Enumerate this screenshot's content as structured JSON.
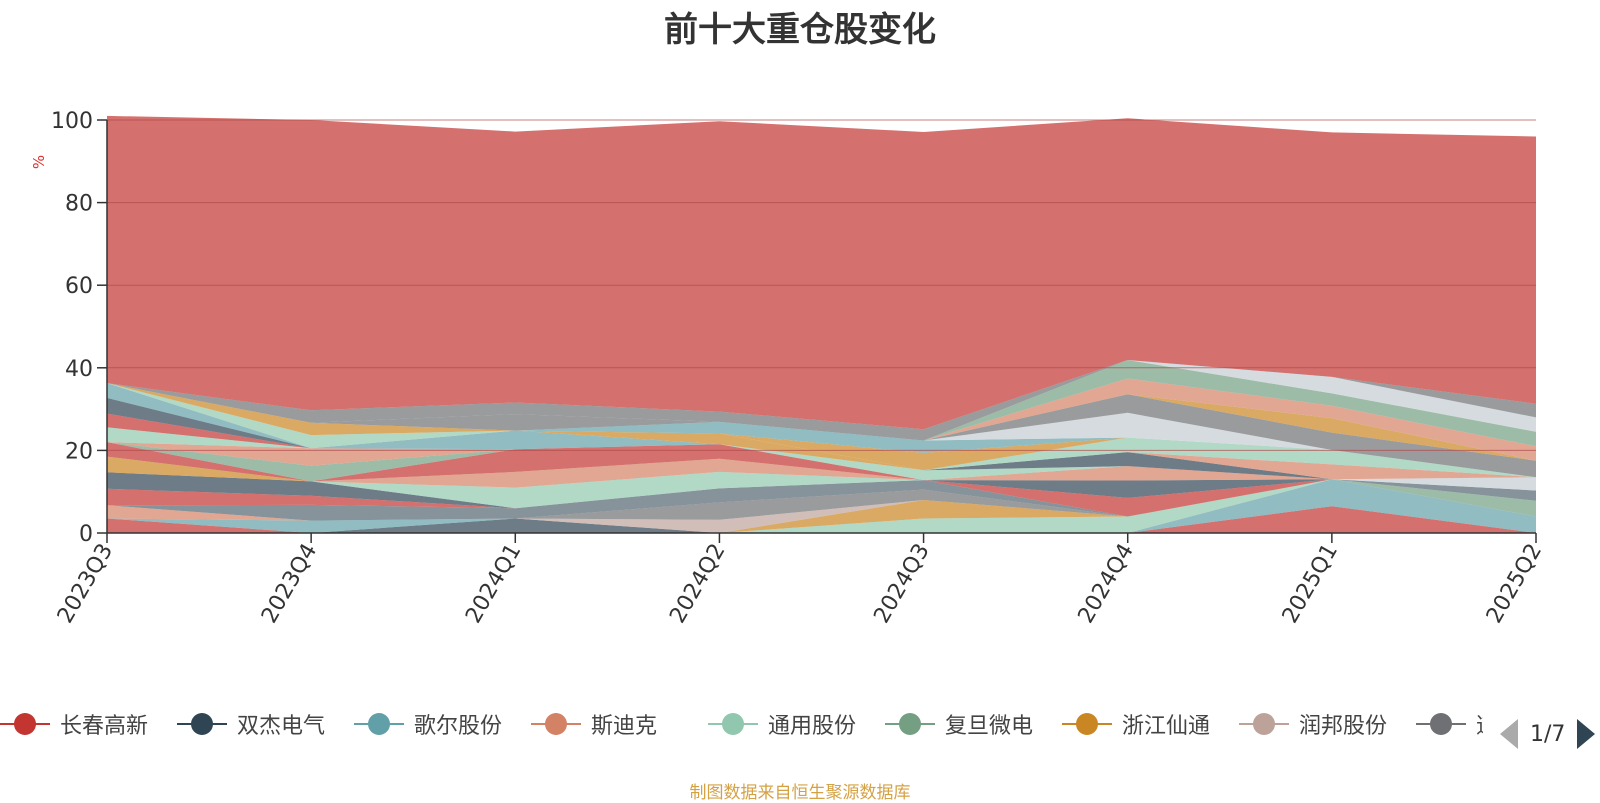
{
  "chart_data": {
    "type": "area",
    "stacked": true,
    "title": "前十大重仓股变化",
    "ylabel": "%",
    "ylim": [
      0,
      100
    ],
    "yticks": [
      "0",
      "20",
      "40",
      "60",
      "80",
      "100"
    ],
    "categories": [
      "2023Q3",
      "2023Q4",
      "2024Q1",
      "2024Q2",
      "2024Q3",
      "2024Q4",
      "2025Q1",
      "2025Q2"
    ],
    "series": [
      {
        "name": "长春高新",
        "color": "#c23531",
        "values": [
          3.5,
          0,
          0,
          0,
          0,
          0,
          6.5,
          0
        ]
      },
      {
        "name": "双杰电气",
        "color": "#2f4554",
        "values": [
          0,
          0,
          3.5,
          0,
          0,
          0,
          0,
          0
        ]
      },
      {
        "name": "歌尔股份",
        "color": "#61a0a8",
        "values": [
          0,
          3.0,
          0,
          0,
          0,
          0,
          6.5,
          4.0
        ]
      },
      {
        "name": "斯迪克",
        "color": "#d48265",
        "values": [
          3.2,
          0,
          0,
          0,
          0,
          0,
          0,
          0
        ]
      },
      {
        "name": "通用股份",
        "color": "#91c7ae",
        "values": [
          0,
          0,
          0,
          0,
          3.5,
          4.0,
          0,
          0
        ]
      },
      {
        "name": "复旦微电",
        "color": "#749f83",
        "values": [
          0,
          0,
          0,
          0,
          0,
          0,
          0,
          3.8
        ]
      },
      {
        "name": "浙江仙通",
        "color": "#ca8622",
        "values": [
          0,
          0,
          0,
          0,
          4.5,
          0,
          0,
          0
        ]
      },
      {
        "name": "润邦股份",
        "color": "#bda29a",
        "values": [
          0,
          0,
          0,
          3.2,
          0,
          0,
          0,
          0
        ]
      },
      {
        "name": "道通科技",
        "color": "#6e7074",
        "values": [
          0,
          0,
          0,
          4.2,
          2.5,
          0,
          0,
          0
        ]
      },
      {
        "name": "",
        "color": "#546570",
        "values": [
          0,
          3.8,
          2.5,
          3.4,
          2.3,
          0,
          0,
          2.5
        ]
      },
      {
        "name": "",
        "color": "#c4ccd3",
        "values": [
          0,
          0,
          0,
          0,
          0,
          0,
          0,
          3.2
        ]
      },
      {
        "name": "",
        "color": "#c23531",
        "values": [
          4.0,
          2.2,
          0,
          0,
          0,
          4.5,
          0,
          0
        ]
      },
      {
        "name": "",
        "color": "#2f4554",
        "values": [
          4.0,
          3.5,
          0,
          0,
          0,
          4.2,
          0,
          0
        ]
      },
      {
        "name": "",
        "color": "#61a0a8",
        "values": [
          0,
          0,
          0,
          0,
          0,
          0,
          0,
          0
        ]
      },
      {
        "name": "",
        "color": "#d48265",
        "values": [
          0,
          0,
          0,
          0,
          0,
          3.5,
          0,
          0
        ]
      },
      {
        "name": "",
        "color": "#ca8622",
        "values": [
          3.8,
          0,
          0,
          0,
          0,
          0,
          0,
          0
        ]
      },
      {
        "name": "",
        "color": "#91c7ae",
        "values": [
          0,
          0,
          5.0,
          4.0,
          0,
          0,
          0,
          0
        ]
      },
      {
        "name": "",
        "color": "#d48265",
        "values": [
          0,
          0,
          3.8,
          3.2,
          0,
          0,
          0,
          0
        ]
      },
      {
        "name": "",
        "color": "#c23531",
        "values": [
          3.5,
          0,
          5.5,
          3.5,
          0,
          0,
          0,
          0
        ]
      },
      {
        "name": "",
        "color": "#749f83",
        "values": [
          0,
          3.8,
          0,
          0,
          0,
          0,
          0,
          0
        ]
      },
      {
        "name": "",
        "color": "#d48265",
        "values": [
          0,
          4.2,
          0,
          0,
          0,
          0,
          0,
          0
        ]
      },
      {
        "name": "",
        "color": "#91c7ae",
        "values": [
          3.6,
          0,
          0,
          0,
          2.4,
          0,
          0,
          0
        ]
      },
      {
        "name": "",
        "color": "#749f83",
        "values": [
          0,
          0,
          0,
          0,
          0,
          0,
          0,
          0
        ]
      },
      {
        "name": "",
        "color": "#c23531",
        "values": [
          3.3,
          0,
          0,
          0,
          0,
          0,
          0,
          0
        ]
      },
      {
        "name": "",
        "color": "#2f4554",
        "values": [
          3.8,
          0,
          0,
          0,
          0,
          0,
          0,
          0
        ]
      },
      {
        "name": "",
        "color": "#61a0a8",
        "values": [
          3.6,
          0,
          4.5,
          0,
          0,
          0,
          0,
          0
        ]
      },
      {
        "name": "",
        "color": "#bda29a",
        "values": [
          0,
          0,
          0,
          0,
          0,
          0,
          0,
          0
        ]
      },
      {
        "name": "",
        "color": "#ca8622",
        "values": [
          0,
          0,
          0,
          2.6,
          0,
          0,
          0,
          0
        ]
      },
      {
        "name": "",
        "color": "#2f4554",
        "values": [
          0,
          0,
          0,
          0,
          0,
          3.4,
          0,
          0
        ]
      },
      {
        "name": "",
        "color": "#d48265",
        "values": [
          0,
          0,
          0,
          0,
          0,
          0,
          3.6,
          0
        ]
      },
      {
        "name": "",
        "color": "#91c7ae",
        "values": [
          0,
          3.2,
          0,
          0,
          0,
          3.5,
          3.5,
          0
        ]
      },
      {
        "name": "",
        "color": "#ca8622",
        "values": [
          0,
          3.0,
          0,
          0,
          4.2,
          0,
          0,
          0
        ]
      },
      {
        "name": "",
        "color": "#61a0a8",
        "values": [
          0,
          0,
          0,
          2.8,
          3.0,
          0,
          0,
          0
        ]
      },
      {
        "name": "",
        "color": "#c4ccd3",
        "values": [
          0,
          0,
          0,
          0,
          0,
          6.0,
          0,
          0
        ]
      },
      {
        "name": "",
        "color": "#6e7074",
        "values": [
          0,
          0,
          4.0,
          0,
          0,
          4.5,
          4.2,
          4.0
        ]
      },
      {
        "name": "",
        "color": "#ca8622",
        "values": [
          0,
          0,
          0,
          0,
          0,
          0,
          3.5,
          0
        ]
      },
      {
        "name": "",
        "color": "#d48265",
        "values": [
          0,
          0,
          0,
          0,
          0,
          3.8,
          3.0,
          3.5
        ]
      },
      {
        "name": "",
        "color": "#749f83",
        "values": [
          0,
          0,
          0,
          0,
          0,
          4.5,
          3.0,
          3.5
        ]
      },
      {
        "name": "",
        "color": "#c4ccd3",
        "values": [
          0,
          0,
          0,
          0,
          0,
          0,
          4.0,
          3.5
        ]
      },
      {
        "name": "",
        "color": "#6e7074",
        "values": [
          0,
          3.0,
          2.8,
          2.5,
          2.7,
          0,
          0,
          3.3
        ]
      },
      {
        "name": "",
        "color": "#c23531",
        "values": [
          64.7,
          70.3,
          65.6,
          70.3,
          72.0,
          58.5,
          59.2,
          64.7
        ]
      }
    ]
  },
  "legend": {
    "items": [
      {
        "name": "长春高新",
        "color": "#c23531"
      },
      {
        "name": "双杰电气",
        "color": "#2f4554"
      },
      {
        "name": "歌尔股份",
        "color": "#61a0a8"
      },
      {
        "name": "斯迪克",
        "color": "#d48265"
      },
      {
        "name": "通用股份",
        "color": "#91c7ae"
      },
      {
        "name": "复旦微电",
        "color": "#749f83"
      },
      {
        "name": "浙江仙通",
        "color": "#ca8622"
      },
      {
        "name": "润邦股份",
        "color": "#bda29a"
      },
      {
        "name": "道通科技",
        "color": "#6e7074"
      }
    ],
    "pager": "1/7",
    "prev_icon": "triangle-left-icon",
    "next_icon": "triangle-right-icon"
  },
  "footer": "制图数据来自恒生聚源数据库"
}
